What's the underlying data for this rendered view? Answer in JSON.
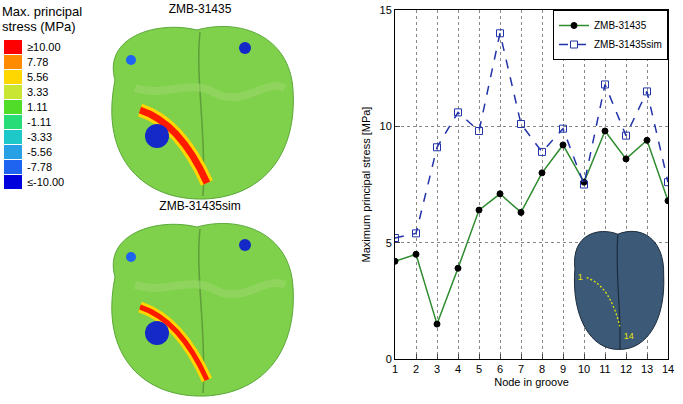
{
  "chart_data": {
    "type": "line",
    "xlabel": "Node in groove",
    "ylabel": "Maximum principal stress [MPa]",
    "x": [
      1,
      2,
      3,
      4,
      5,
      6,
      7,
      8,
      9,
      10,
      11,
      12,
      13,
      14
    ],
    "series": [
      {
        "name": "ZMB-31435",
        "color": "#2e8b2e",
        "marker": "circle",
        "line_style": "solid",
        "values": [
          4.2,
          4.5,
          1.5,
          3.9,
          6.4,
          7.1,
          6.3,
          8.0,
          9.2,
          7.6,
          9.8,
          8.6,
          9.4,
          6.8
        ]
      },
      {
        "name": "ZMB-31435sim",
        "color": "#2233aa",
        "marker": "square-open",
        "line_style": "dash",
        "values": [
          5.2,
          5.4,
          9.1,
          10.6,
          9.8,
          14.0,
          10.1,
          8.9,
          9.9,
          7.5,
          11.8,
          9.6,
          11.5,
          7.6
        ]
      }
    ],
    "xlim": [
      1,
      14
    ],
    "xticks": [
      1,
      2,
      3,
      4,
      5,
      6,
      7,
      8,
      9,
      10,
      11,
      12,
      13,
      14
    ],
    "ylim": [
      0,
      15
    ],
    "yticks": [
      0,
      5,
      10,
      15
    ],
    "grid": true,
    "legend": "upper right"
  },
  "figure": {
    "panels": [
      {
        "title": "ZMB-31435"
      },
      {
        "title": "ZMB-31435sim"
      }
    ],
    "stress_legend": {
      "title": "Max. principal stress (MPa)",
      "ticks": [
        {
          "value": 10,
          "label": "≥10.00"
        },
        7.78,
        5.56,
        3.33,
        1.11,
        -1.11,
        -3.33,
        -5.56,
        -7.78,
        {
          "value": -10,
          "label": "≤-10.00"
        }
      ],
      "colors": [
        "#ff0000",
        "#ff8c00",
        "#ffd700",
        "#c8e632",
        "#50dc28",
        "#28dc78",
        "#1ec8c8",
        "#28a0e6",
        "#1e64f0",
        "#0000dc"
      ]
    },
    "inset_labels": [
      "1",
      "14"
    ]
  }
}
